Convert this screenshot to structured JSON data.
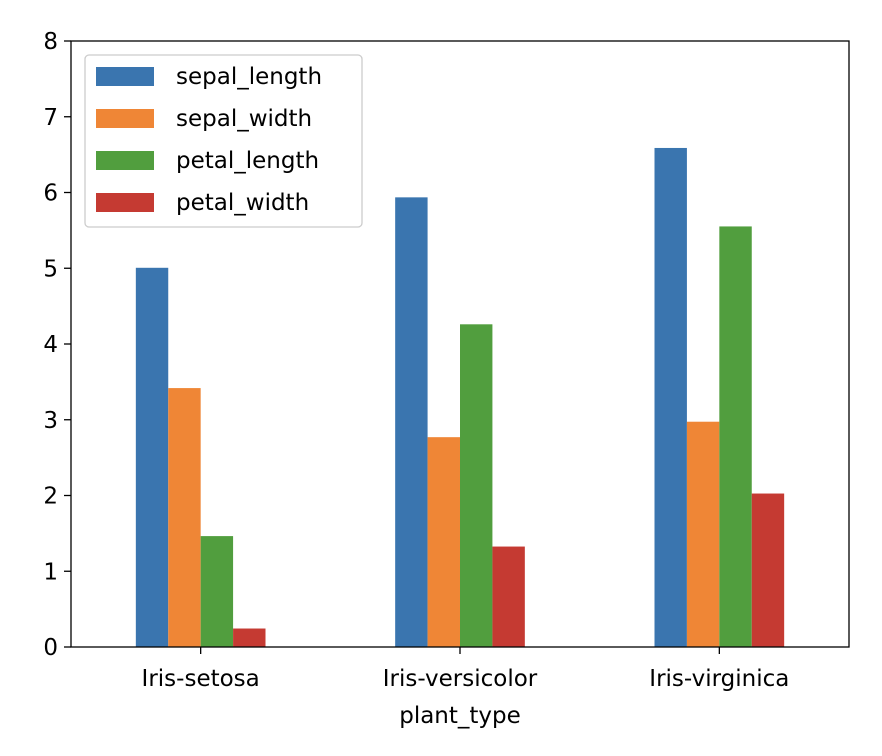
{
  "chart_data": {
    "type": "bar",
    "xlabel": "plant_type",
    "ylabel": "",
    "title": "",
    "ylim": [
      0,
      8
    ],
    "yticks": [
      "0",
      "1",
      "2",
      "3",
      "4",
      "5",
      "6",
      "7",
      "8"
    ],
    "grid": false,
    "legend_position": "top-left",
    "categories": [
      "Iris-setosa",
      "Iris-versicolor",
      "Iris-virginica"
    ],
    "series": [
      {
        "name": "sepal_length",
        "color": "#3a75af",
        "values": [
          5.006,
          5.936,
          6.588
        ]
      },
      {
        "name": "sepal_width",
        "color": "#ef8636",
        "values": [
          3.418,
          2.77,
          2.974
        ]
      },
      {
        "name": "petal_length",
        "color": "#519e3e",
        "values": [
          1.464,
          4.26,
          5.552
        ]
      },
      {
        "name": "petal_width",
        "color": "#c53a32",
        "values": [
          0.244,
          1.326,
          2.026
        ]
      }
    ]
  }
}
